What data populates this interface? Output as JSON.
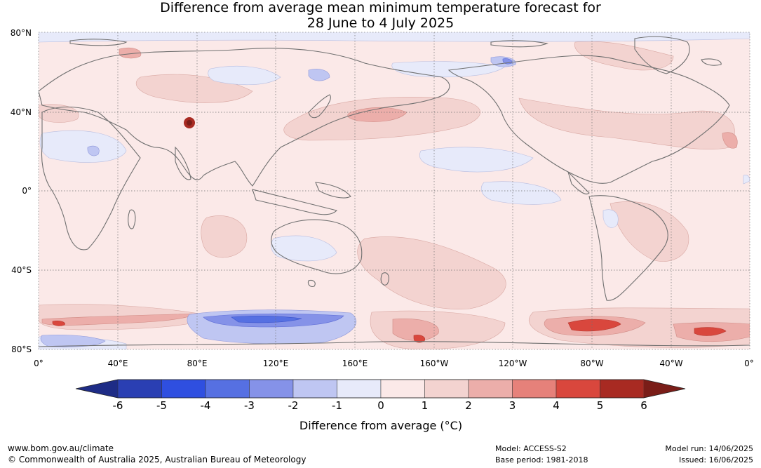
{
  "title": {
    "line1": "Difference from average mean minimum temperature forecast for",
    "line2": "28 June to 4 July 2025"
  },
  "map": {
    "lat_labels": [
      "80°N",
      "40°N",
      "0°",
      "40°S",
      "80°S"
    ],
    "lon_labels": [
      "0°",
      "40°E",
      "80°E",
      "120°E",
      "160°E",
      "160°W",
      "120°W",
      "80°W",
      "40°W",
      "0°"
    ],
    "background_anomaly_color": "#fbe9e8",
    "coastline_color": "#707070"
  },
  "legend": {
    "title": "Difference from average (°C)",
    "ticks": [
      "-6",
      "-5",
      "-4",
      "-3",
      "-2",
      "-1",
      "0",
      "1",
      "2",
      "3",
      "4",
      "5",
      "6"
    ],
    "colors": [
      "#1e2c86",
      "#2a3fb3",
      "#2f4fe0",
      "#5670e2",
      "#8592e8",
      "#bfc6f2",
      "#e7eafa",
      "#fbe9e8",
      "#f3d3d0",
      "#ecaeaa",
      "#e6817a",
      "#d9473d",
      "#a82a22",
      "#7a1d18"
    ]
  },
  "footer": {
    "website": "www.bom.gov.au/climate",
    "copyright": "© Commonwealth of Australia 2025, Australian Bureau of Meteorology",
    "model": "Model: ACCESS-S2",
    "base_period": "Base period: 1981-2018",
    "model_run": "Model run: 14/06/2025",
    "issued": "Issued: 16/06/2025"
  }
}
